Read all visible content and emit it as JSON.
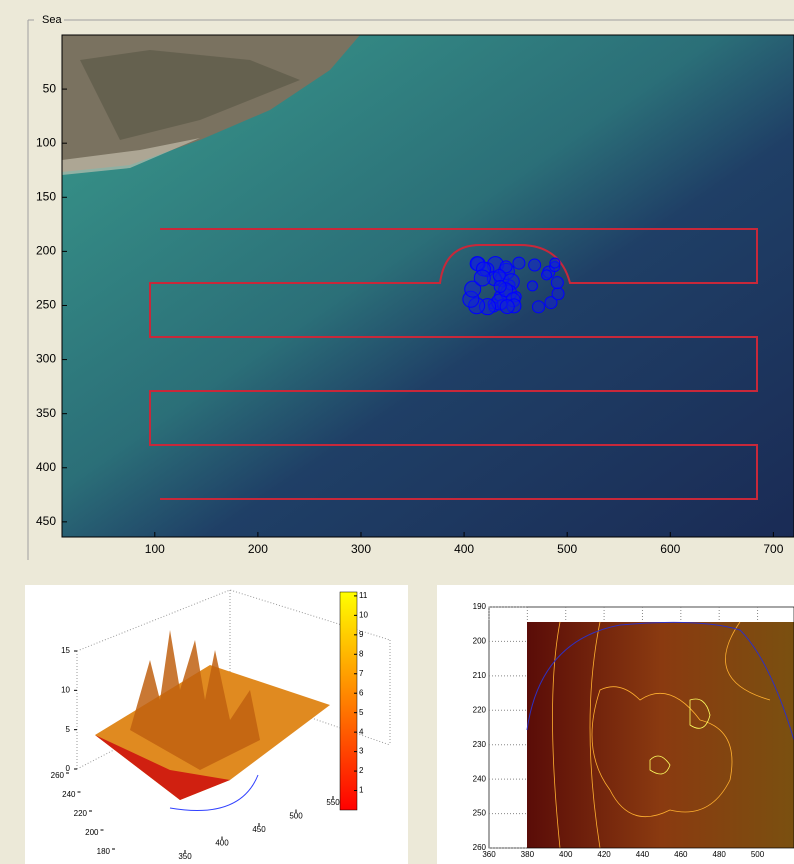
{
  "panel": {
    "title": "Sea"
  },
  "map": {
    "xlim": [
      10,
      720
    ],
    "ylim": [
      0,
      464
    ],
    "xticks": [
      100,
      200,
      300,
      400,
      500,
      600,
      700
    ],
    "yticks": [
      50,
      100,
      150,
      200,
      250,
      300,
      350,
      400,
      450
    ]
  },
  "surface": {
    "xticks": [
      350,
      400,
      450,
      500,
      550
    ],
    "yticks": [
      180,
      200,
      220,
      240,
      260
    ],
    "zticks": [
      0,
      5,
      10,
      15
    ],
    "colorbar": {
      "lim": [
        0,
        11.2
      ],
      "ticks": [
        1,
        2,
        3,
        4,
        5,
        6,
        7,
        8,
        9,
        10,
        11
      ]
    }
  },
  "contour": {
    "xlim": [
      360,
      519
    ],
    "ylim": [
      190,
      260
    ],
    "xticks": [
      360,
      380,
      400,
      420,
      440,
      460,
      480,
      500
    ],
    "yticks": [
      190,
      200,
      210,
      220,
      230,
      240,
      250,
      260
    ]
  }
}
